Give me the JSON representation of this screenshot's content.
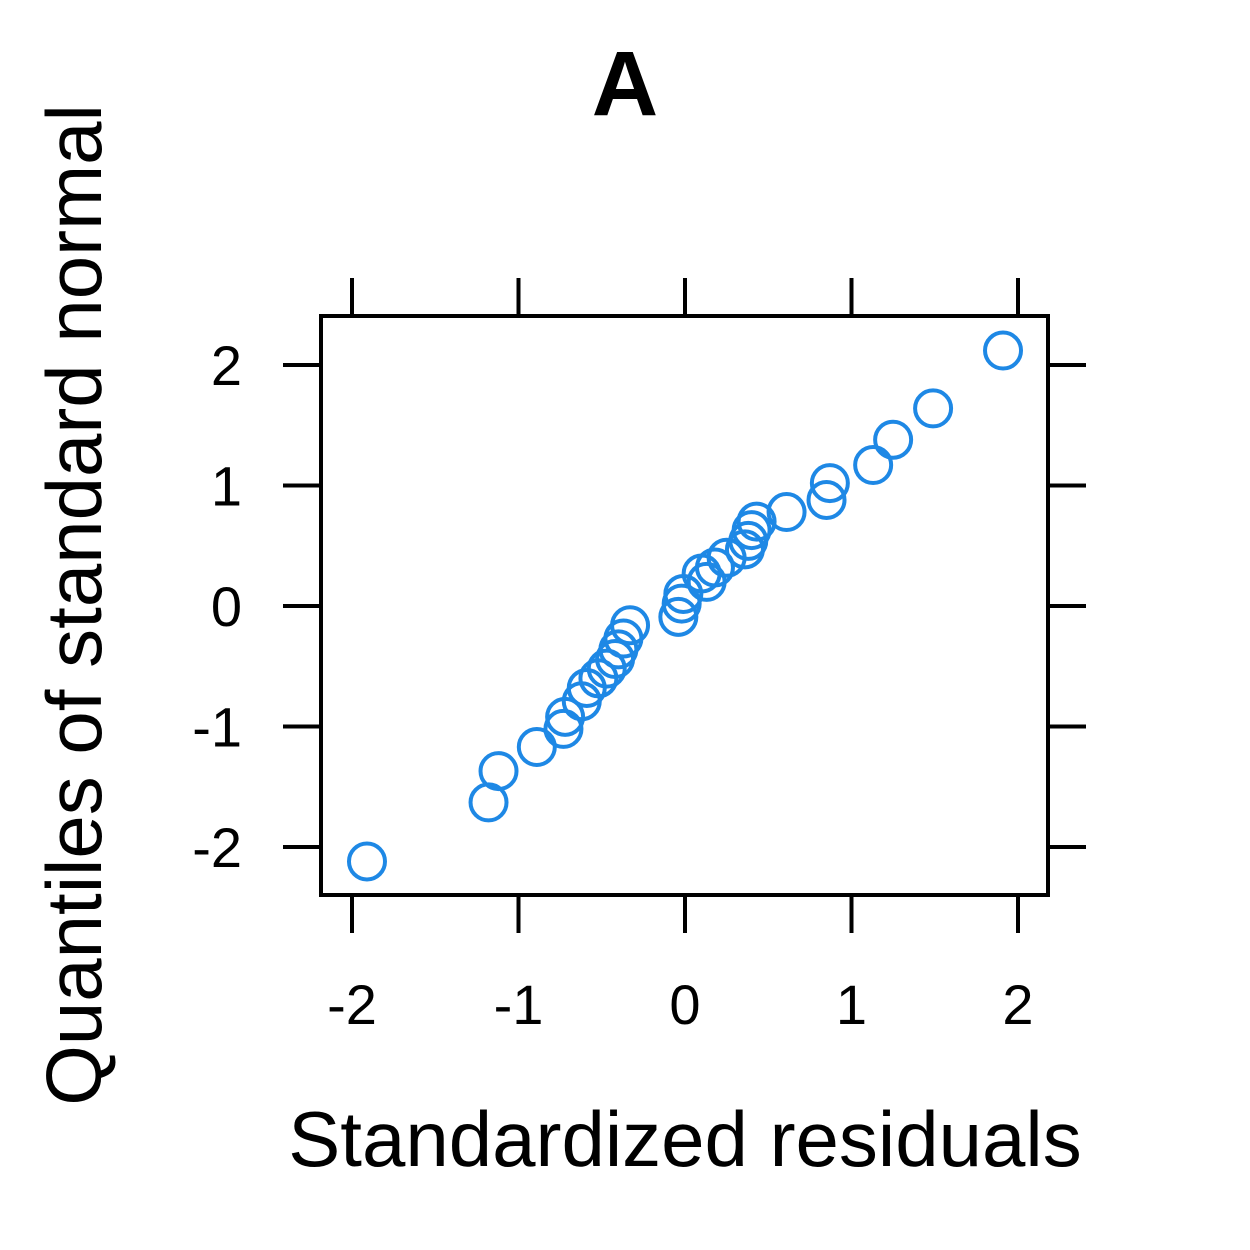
{
  "chart_data": {
    "type": "scatter",
    "title": "A",
    "xlabel": "Standardized residuals",
    "ylabel": "Quantiles of standard normal",
    "xlim": [
      -2.2,
      2.2
    ],
    "ylim": [
      -2.4,
      2.4
    ],
    "x_ticks": [
      "-2",
      "-1",
      "0",
      "1",
      "2"
    ],
    "y_ticks": [
      "-2",
      "-1",
      "0",
      "1",
      "2"
    ],
    "grid": false,
    "marker": "open-circle",
    "point_color": "#1E88E5",
    "points": [
      {
        "x": -1.91,
        "y": -2.12
      },
      {
        "x": -1.18,
        "y": -1.63
      },
      {
        "x": -1.12,
        "y": -1.37
      },
      {
        "x": -0.89,
        "y": -1.17
      },
      {
        "x": -0.73,
        "y": -1.02
      },
      {
        "x": -0.72,
        "y": -0.92
      },
      {
        "x": -0.62,
        "y": -0.79
      },
      {
        "x": -0.59,
        "y": -0.68
      },
      {
        "x": -0.52,
        "y": -0.6
      },
      {
        "x": -0.47,
        "y": -0.52
      },
      {
        "x": -0.42,
        "y": -0.44
      },
      {
        "x": -0.4,
        "y": -0.36
      },
      {
        "x": -0.37,
        "y": -0.27
      },
      {
        "x": -0.33,
        "y": -0.16
      },
      {
        "x": -0.04,
        "y": -0.09
      },
      {
        "x": -0.02,
        "y": 0.02
      },
      {
        "x": -0.01,
        "y": 0.1
      },
      {
        "x": 0.13,
        "y": 0.2
      },
      {
        "x": 0.1,
        "y": 0.27
      },
      {
        "x": 0.18,
        "y": 0.32
      },
      {
        "x": 0.25,
        "y": 0.4
      },
      {
        "x": 0.36,
        "y": 0.47
      },
      {
        "x": 0.38,
        "y": 0.54
      },
      {
        "x": 0.4,
        "y": 0.63
      },
      {
        "x": 0.43,
        "y": 0.7
      },
      {
        "x": 0.61,
        "y": 0.78
      },
      {
        "x": 0.85,
        "y": 0.88
      },
      {
        "x": 0.87,
        "y": 1.02
      },
      {
        "x": 1.13,
        "y": 1.17
      },
      {
        "x": 1.25,
        "y": 1.38
      },
      {
        "x": 1.49,
        "y": 1.64
      },
      {
        "x": 1.91,
        "y": 2.12
      }
    ]
  }
}
